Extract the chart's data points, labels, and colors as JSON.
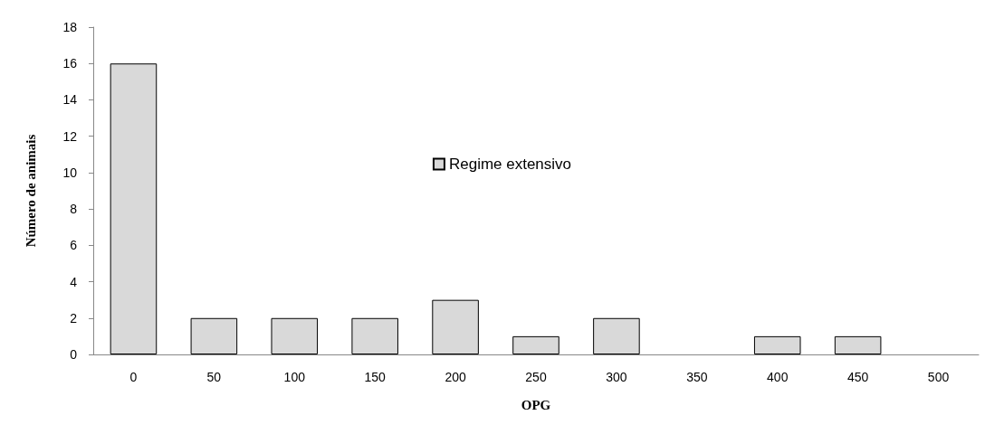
{
  "chart_data": {
    "type": "bar",
    "xlabel": "OPG",
    "ylabel": "Número de animais",
    "categories": [
      "0",
      "50",
      "100",
      "150",
      "200",
      "250",
      "300",
      "350",
      "400",
      "450",
      "500"
    ],
    "series": [
      {
        "name": "Regime extensivo",
        "color": "#d9d9d9",
        "values": [
          16,
          2,
          2,
          2,
          3,
          1,
          2,
          0,
          1,
          1,
          0
        ]
      }
    ],
    "ylim": [
      0,
      18
    ],
    "yticks": [
      0,
      2,
      4,
      6,
      8,
      10,
      12,
      14,
      16,
      18
    ],
    "grid": false,
    "legend": "top"
  }
}
